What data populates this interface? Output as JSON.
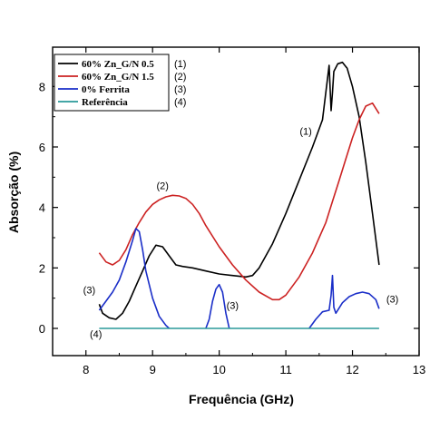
{
  "chart_data": {
    "type": "line",
    "title": "",
    "xlabel": "Frequência (GHz)",
    "ylabel": "Absorção (%)",
    "xlim": [
      7.5,
      13
    ],
    "ylim": [
      -0.9,
      9.3
    ],
    "xticks": [
      8,
      9,
      10,
      11,
      12,
      13
    ],
    "yticks": [
      0,
      2,
      4,
      6,
      8
    ],
    "grid": false,
    "legend_position": "top-left",
    "series": [
      {
        "name": "60% Zn_G/N 0.5",
        "tag": "(1)",
        "color": "#000000",
        "x": [
          8.2,
          8.25,
          8.35,
          8.45,
          8.55,
          8.65,
          8.75,
          8.85,
          8.95,
          9.05,
          9.15,
          9.25,
          9.35,
          9.45,
          9.6,
          9.8,
          10.0,
          10.2,
          10.4,
          10.5,
          10.6,
          10.8,
          11.0,
          11.2,
          11.4,
          11.55,
          11.65,
          11.68,
          11.7,
          11.72,
          11.78,
          11.85,
          11.92,
          12.0,
          12.1,
          12.2,
          12.3,
          12.4
        ],
        "y": [
          0.8,
          0.5,
          0.35,
          0.3,
          0.5,
          0.9,
          1.4,
          1.9,
          2.4,
          2.75,
          2.7,
          2.4,
          2.1,
          2.05,
          2.0,
          1.9,
          1.8,
          1.75,
          1.7,
          1.75,
          2.0,
          2.8,
          3.8,
          4.9,
          6.0,
          6.9,
          8.7,
          7.2,
          7.8,
          8.5,
          8.75,
          8.8,
          8.6,
          8.0,
          7.0,
          5.5,
          3.8,
          2.1
        ]
      },
      {
        "name": "60% Zn_G/N 1.5",
        "tag": "(2)",
        "color": "#cc2222",
        "x": [
          8.2,
          8.3,
          8.4,
          8.5,
          8.6,
          8.7,
          8.8,
          8.9,
          9.0,
          9.1,
          9.2,
          9.3,
          9.4,
          9.5,
          9.6,
          9.7,
          9.8,
          10.0,
          10.2,
          10.4,
          10.6,
          10.8,
          10.9,
          11.0,
          11.2,
          11.4,
          11.5,
          11.6,
          11.7,
          11.8,
          11.9,
          12.0,
          12.1,
          12.2,
          12.3,
          12.4
        ],
        "y": [
          2.5,
          2.2,
          2.1,
          2.25,
          2.6,
          3.1,
          3.5,
          3.85,
          4.1,
          4.25,
          4.35,
          4.4,
          4.38,
          4.3,
          4.1,
          3.8,
          3.4,
          2.7,
          2.1,
          1.6,
          1.2,
          0.95,
          0.95,
          1.1,
          1.7,
          2.5,
          3.0,
          3.5,
          4.2,
          4.9,
          5.6,
          6.3,
          6.9,
          7.35,
          7.45,
          7.1
        ]
      },
      {
        "name": "0% Ferrita",
        "tag": "(3)",
        "color": "#1a2ec8",
        "segments": [
          {
            "x": [
              8.2,
              8.3,
              8.4,
              8.5,
              8.6,
              8.7,
              8.75,
              8.8,
              8.85,
              8.9,
              9.0,
              9.1,
              9.2,
              9.25
            ],
            "y": [
              0.6,
              0.9,
              1.2,
              1.6,
              2.2,
              2.9,
              3.3,
              3.2,
              2.6,
              1.9,
              1.0,
              0.4,
              0.1,
              0.0
            ]
          },
          {
            "x": [
              9.8,
              9.85,
              9.9,
              9.95,
              10.0,
              10.05,
              10.1,
              10.15
            ],
            "y": [
              0.0,
              0.3,
              0.9,
              1.3,
              1.45,
              1.2,
              0.5,
              0.0
            ]
          },
          {
            "x": [
              11.35,
              11.45,
              11.55,
              11.65,
              11.68,
              11.7,
              11.72,
              11.75,
              11.85,
              11.95,
              12.05,
              12.15,
              12.25,
              12.35,
              12.4
            ],
            "y": [
              0.0,
              0.3,
              0.55,
              0.6,
              1.1,
              1.75,
              0.7,
              0.5,
              0.85,
              1.05,
              1.15,
              1.2,
              1.15,
              0.95,
              0.65
            ]
          }
        ]
      },
      {
        "name": "Referência",
        "tag": "(4)",
        "color": "#2a9a9a",
        "x": [
          8.2,
          12.4
        ],
        "y": [
          0.0,
          0.0
        ]
      }
    ],
    "annotations": [
      {
        "text": "(1)",
        "x": 11.3,
        "y": 6.4
      },
      {
        "text": "(2)",
        "x": 9.15,
        "y": 4.6
      },
      {
        "text": "(3)",
        "x": 8.05,
        "y": 1.15
      },
      {
        "text": "(3)",
        "x": 10.2,
        "y": 0.65
      },
      {
        "text": "(3)",
        "x": 12.6,
        "y": 0.85
      },
      {
        "text": "(4)",
        "x": 8.15,
        "y": -0.3
      }
    ]
  }
}
